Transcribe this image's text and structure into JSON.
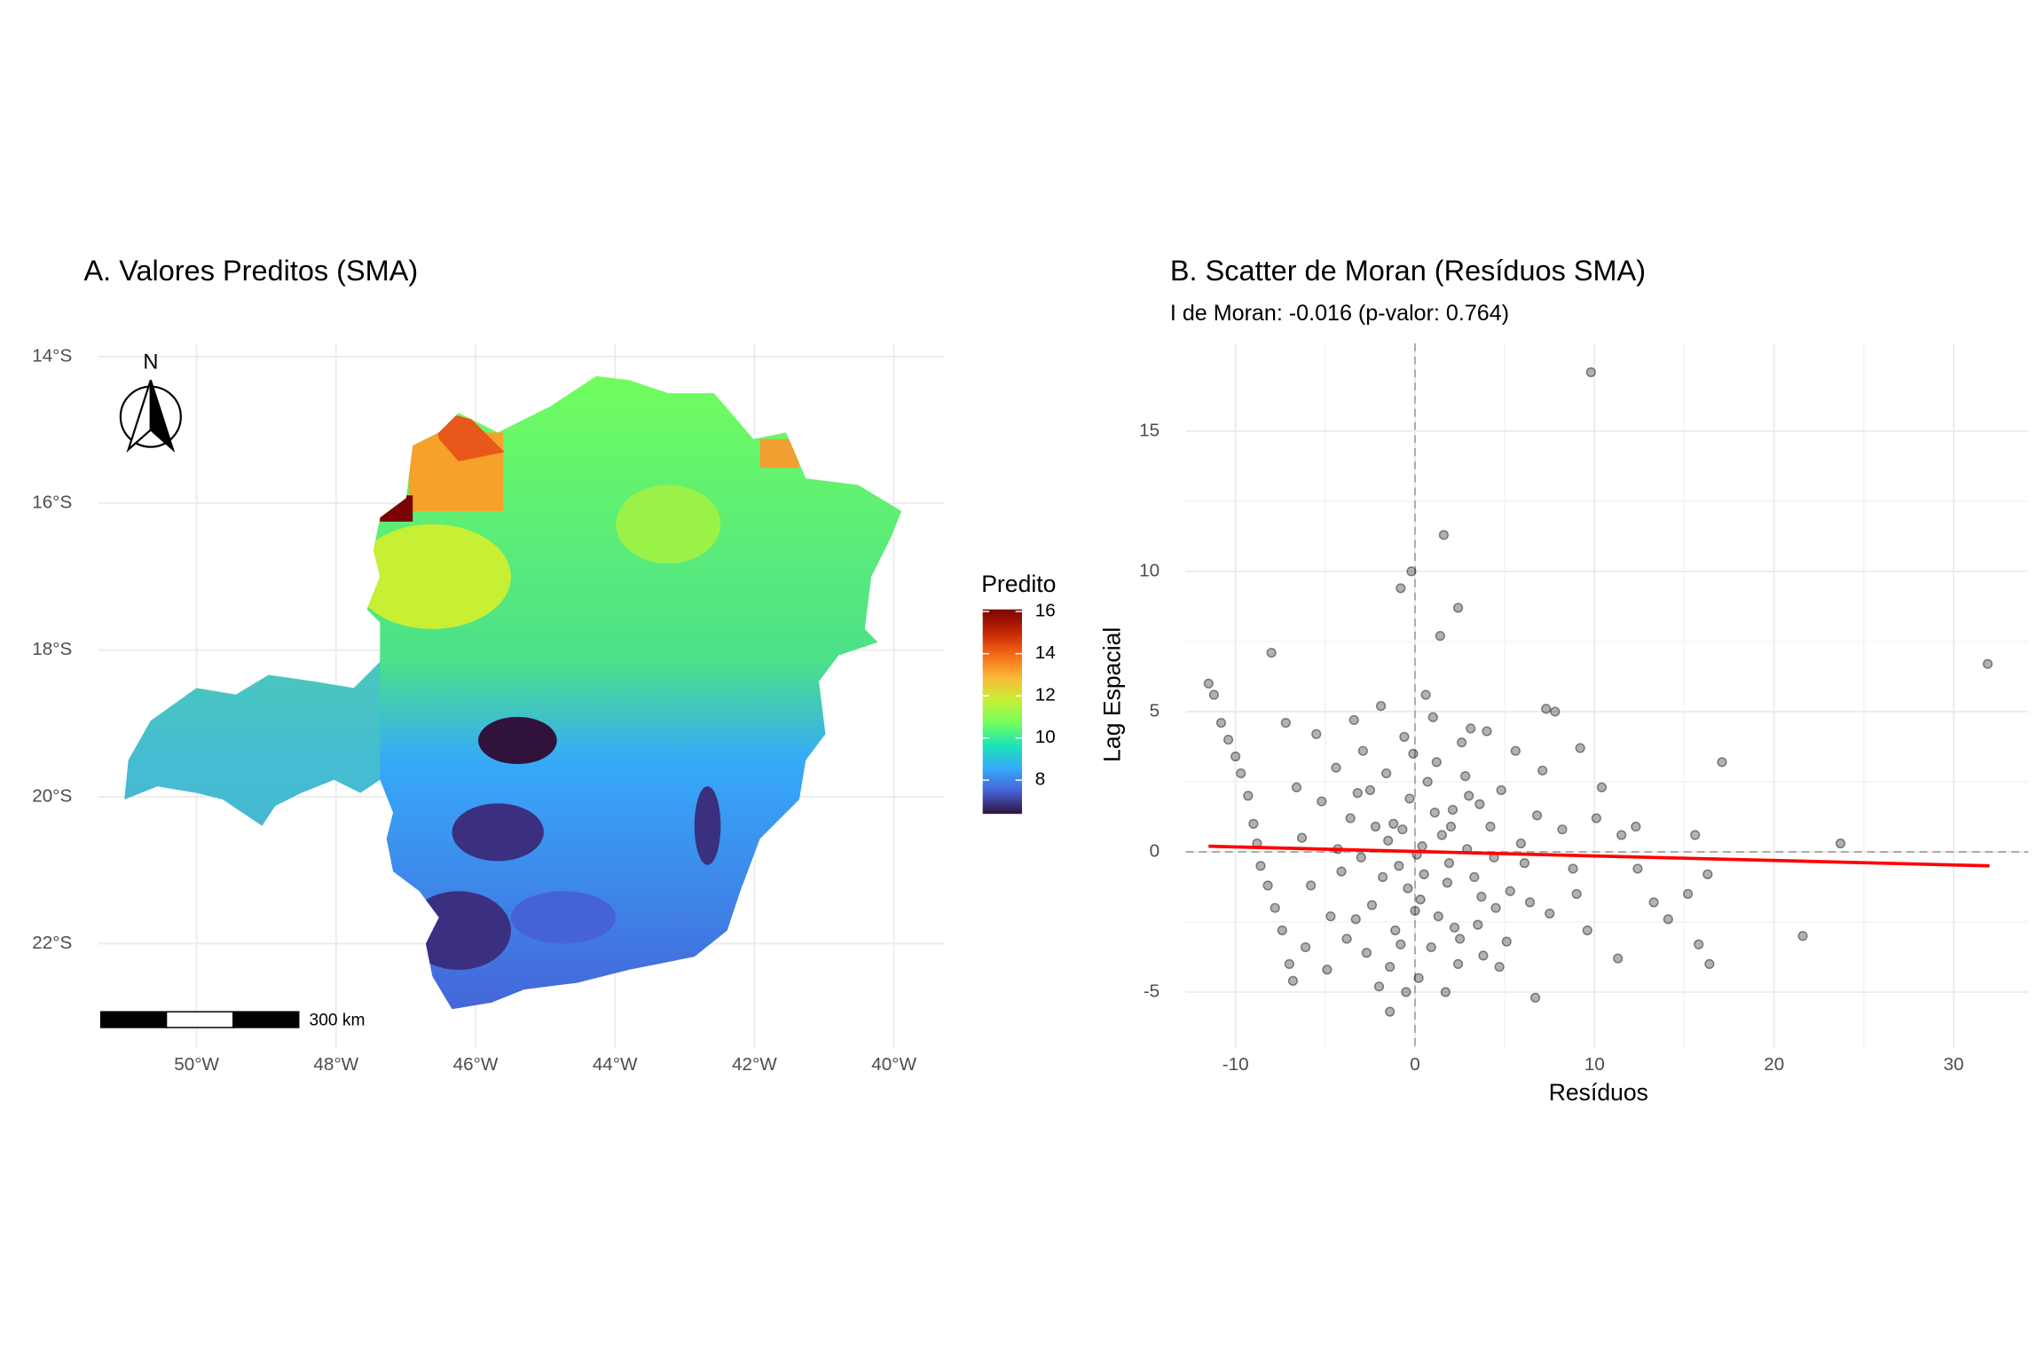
{
  "chart_data": [
    {
      "type": "map",
      "title": "A. Valores Preditos (SMA)",
      "xlim": [
        -51.41,
        -39.29
      ],
      "ylim": [
        -23.43,
        -13.82
      ],
      "xticks": [
        {
          "value": -50,
          "label": "50°W"
        },
        {
          "value": -48,
          "label": "48°W"
        },
        {
          "value": -46,
          "label": "46°W"
        },
        {
          "value": -44,
          "label": "44°W"
        },
        {
          "value": -42,
          "label": "42°W"
        },
        {
          "value": -40,
          "label": "40°W"
        }
      ],
      "yticks": [
        {
          "value": -14,
          "label": "14°S"
        },
        {
          "value": -16,
          "label": "16°S"
        },
        {
          "value": -18,
          "label": "18°S"
        },
        {
          "value": -20,
          "label": "20°S"
        },
        {
          "value": -22,
          "label": "22°S"
        }
      ],
      "grid": true,
      "legend_title": "Predito",
      "clim": [
        6.4,
        16.1
      ],
      "cticks": [
        8,
        10,
        12,
        14,
        16
      ],
      "colorscale": [
        "#30123b",
        "#4662d7",
        "#36aaf9",
        "#1ae4b6",
        "#72fe5e",
        "#c7ef34",
        "#fbb938",
        "#f56918",
        "#c42503",
        "#7a0403"
      ],
      "north_label": "N",
      "scale_label": "300 km"
    },
    {
      "type": "scatter",
      "title": "B. Scatter de Moran (Resíduos SMA)",
      "subtitle": "I de Moran: -0.016 (p-valor: 0.764)",
      "xlabel": "Resíduos",
      "ylabel": "Lag Espacial",
      "xlim": [
        -12.77,
        34.16
      ],
      "ylim": [
        -7.01,
        18.13
      ],
      "xticks": [
        -10,
        0,
        10,
        20,
        30
      ],
      "yticks": [
        -5,
        0,
        5,
        10,
        15
      ],
      "grid": true,
      "point_color": "#000000",
      "reference_lines": true,
      "x": [
        9.8,
        1.6,
        -0.2,
        -0.8,
        2.4,
        1.4,
        -8,
        31.9,
        -11.5,
        17.1,
        23.7,
        21.6,
        16.4,
        15.8,
        6.7,
        -1.4,
        15.6,
        16.3,
        15.2,
        13.3,
        11.3,
        14.1,
        12.4,
        11.5,
        9.2,
        10.4,
        7.3,
        7.8,
        -11.2,
        -10.8,
        -10.4,
        -10.0,
        -9.7,
        -9.3,
        -9.0,
        -8.8,
        -8.6,
        -8.2,
        -7.8,
        -7.4,
        -7.0,
        -6.8,
        -7.2,
        -3.2,
        -1.5,
        0.5,
        2.1,
        -2.4,
        1.2,
        3.5,
        -0.6,
        4.2,
        -4.1,
        0.9,
        2.8,
        -1.1,
        5.3,
        -5.2,
        1.8,
        -0.3,
        3.1,
        -2.9,
        0.2,
        4.8,
        -3.8,
        2.4,
        -1.9,
        6.1,
        -4.7,
        1.5,
        -0.9,
        0.7,
        3.8,
        -2.2,
        5.6,
        -5.8,
        0.0,
        2.9,
        -1.4,
        4.5,
        -3.4,
        1.0,
        -0.4,
        6.8,
        -6.3,
        2.2,
        -2.7,
        3.6,
        -1.6,
        0.4,
        5.1,
        -4.4,
        1.7,
        7.5,
        -0.1,
        3.3,
        -3.0,
        8.2,
        -5.5,
        2.6,
        -0.8,
        4.0,
        -2.0,
        6.4,
        1.3,
        -3.6,
        0.6,
        9.0,
        -6.1,
        2.0,
        -1.2,
        4.7,
        -4.9,
        3.0,
        0.1,
        -2.5,
        5.9,
        -0.5,
        7.1,
        -6.6,
        1.1,
        3.7,
        -3.3,
        8.8,
        0.3,
        10.1,
        -1.8,
        4.4,
        2.5,
        -4.3,
        12.3,
        9.6,
        -0.7,
        1.9
      ],
      "values": [
        17.1,
        11.3,
        10.0,
        9.4,
        8.7,
        7.7,
        7.1,
        6.7,
        6.0,
        3.2,
        0.3,
        -3.0,
        -4.0,
        -3.3,
        -5.2,
        -5.7,
        0.6,
        -0.8,
        -1.5,
        -1.8,
        -3.8,
        -2.4,
        -0.6,
        0.6,
        3.7,
        2.3,
        5.1,
        5.0,
        5.6,
        4.6,
        4.0,
        3.4,
        2.8,
        2.0,
        1.0,
        0.3,
        -0.5,
        -1.2,
        -2.0,
        -2.8,
        -4.0,
        -4.6,
        4.6,
        2.1,
        0.4,
        -0.8,
        1.5,
        -1.9,
        3.2,
        -2.6,
        4.1,
        0.9,
        -0.7,
        -3.4,
        2.7,
        -2.8,
        -1.4,
        1.8,
        -1.1,
        1.9,
        4.4,
        3.6,
        -4.5,
        2.2,
        -3.1,
        -4.0,
        5.2,
        -0.4,
        -2.3,
        0.6,
        -0.5,
        2.5,
        -3.7,
        0.9,
        3.6,
        -1.2,
        -2.1,
        0.1,
        -4.1,
        -2.0,
        4.7,
        4.8,
        -1.3,
        1.3,
        0.5,
        -2.7,
        -3.6,
        1.7,
        2.8,
        0.2,
        -3.2,
        3.0,
        -5.0,
        -2.2,
        3.5,
        -0.9,
        -0.2,
        0.8,
        4.2,
        3.9,
        -3.3,
        4.3,
        -4.8,
        -1.8,
        -2.3,
        1.2,
        5.6,
        -1.5,
        -3.4,
        0.9,
        1.0,
        -4.1,
        -4.2,
        2.0,
        -0.1,
        2.2,
        0.3,
        -5.0,
        2.9,
        2.3,
        1.4,
        -1.6,
        -2.4,
        -0.6,
        -1.7,
        1.2,
        -0.9,
        -0.2,
        -3.1,
        0.1,
        0.9,
        -2.8,
        0.8,
        -0.4
      ],
      "fit": {
        "x": [
          -11.5,
          32
        ],
        "values": [
          0.2,
          -0.5
        ],
        "color": "#ff0000"
      }
    }
  ]
}
